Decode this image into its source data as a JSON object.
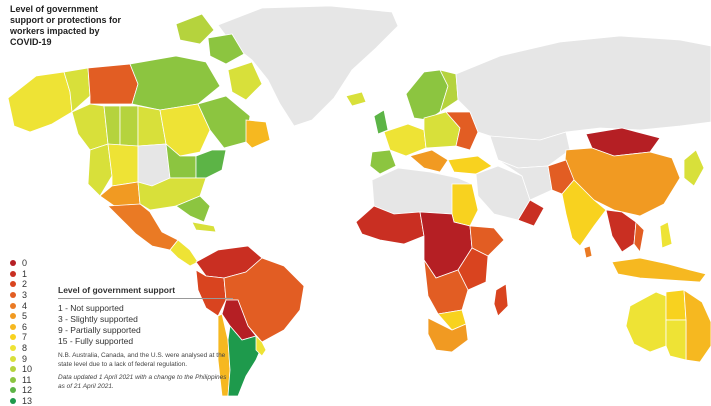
{
  "title": "Level of government support or protections for workers impacted by COVID-19",
  "scale": [
    {
      "value": "0",
      "color": "#b51f24"
    },
    {
      "value": "1",
      "color": "#c92f22"
    },
    {
      "value": "2",
      "color": "#d9441f"
    },
    {
      "value": "3",
      "color": "#e25d23"
    },
    {
      "value": "4",
      "color": "#ea7a24"
    },
    {
      "value": "5",
      "color": "#f19a22"
    },
    {
      "value": "6",
      "color": "#f6b820"
    },
    {
      "value": "7",
      "color": "#f8d21f"
    },
    {
      "value": "8",
      "color": "#eee335"
    },
    {
      "value": "9",
      "color": "#d8e03a"
    },
    {
      "value": "10",
      "color": "#b5d33d"
    },
    {
      "value": "11",
      "color": "#8cc540"
    },
    {
      "value": "12",
      "color": "#5cb446"
    },
    {
      "value": "13",
      "color": "#1e9a4c"
    }
  ],
  "legend": {
    "heading": "Level of government support",
    "items": [
      "1 - Not supported",
      "3 - Slightly supported",
      "9 - Partially supported",
      "15 - Fully supported"
    ],
    "note": "N.B. Australia, Canada, and the U.S. were analysed at the state level due to a lack of federal regulation.",
    "update": "Data updated 1 April 2021 with a change to the Philippines as of 21 April 2021."
  },
  "map_colors": {
    "no_data": "#e6e6e6",
    "ocean": "#ffffff",
    "border": "#ffffff"
  }
}
